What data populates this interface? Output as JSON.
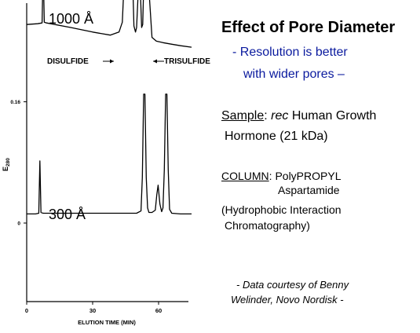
{
  "slide": {
    "title": "Effect of Pore Diameter",
    "bullet_line1": "- Resolution is better",
    "bullet_line2": "with wider pores –",
    "sample_label": "Sample",
    "sample_sep": ": ",
    "sample_italic": "rec",
    "sample_rest": " Human Growth",
    "sample_line2": "Hormone (21 kDa)",
    "column_label": "COLUMN",
    "column_rest": ": PolyPROPYL",
    "column_line2": "Aspartamide",
    "hic_line1": "(Hydrophobic Interaction",
    "hic_line2": "Chromatography)",
    "credit_line1": "- Data courtesy of Benny",
    "credit_line2": "Welinder, Novo Nordisk -",
    "colors": {
      "bullet_text": "#0a1a9e",
      "trace": "#000000"
    }
  },
  "chart_data": {
    "type": "line",
    "xlabel": "ELUTION TIME (MIN)",
    "ylabel": "E",
    "ylabel_subscript": "280",
    "x_ticks": [
      "0",
      "30",
      "60"
    ],
    "y_ticks": [
      "0.16",
      "0"
    ],
    "xlim": [
      0,
      75
    ],
    "series": [
      {
        "name": "1000 Å",
        "annotations": [
          "DISULFIDE",
          "TRISULFIDE"
        ],
        "x": [
          0,
          5,
          7,
          7.5,
          8,
          9,
          20,
          30,
          38,
          42,
          43.5,
          44.5,
          45.3,
          46.2,
          47.3,
          48.2,
          48.8,
          49.5,
          50,
          50.5,
          51.2,
          51.8,
          52.3,
          52.8,
          53.3,
          53.8,
          54.3,
          55,
          55.8,
          57,
          59,
          62,
          66,
          70,
          75
        ],
        "y": [
          0.262,
          0.263,
          0.264,
          0.34,
          0.265,
          0.264,
          0.258,
          0.252,
          0.248,
          0.252,
          0.265,
          0.33,
          0.48,
          0.52,
          0.47,
          0.32,
          0.26,
          0.252,
          0.258,
          0.29,
          0.34,
          0.3,
          0.258,
          0.262,
          0.32,
          0.48,
          0.52,
          0.45,
          0.3,
          0.245,
          0.24,
          0.238,
          0.236,
          0.234,
          0.232
        ]
      },
      {
        "name": "300 Å",
        "x": [
          0,
          4,
          5.5,
          6,
          6.5,
          7.5,
          20,
          30,
          45,
          50,
          52,
          52.6,
          53.2,
          53.8,
          54.4,
          55,
          55.6,
          57,
          58.5,
          59.2,
          59.8,
          60.6,
          61.4,
          62,
          62.6,
          63.2,
          63.8,
          64.4,
          65,
          66,
          70,
          75
        ],
        "y": [
          0.012,
          0.012,
          0.013,
          0.082,
          0.014,
          0.013,
          0.013,
          0.013,
          0.013,
          0.013,
          0.016,
          0.06,
          0.17,
          0.17,
          0.06,
          0.02,
          0.014,
          0.014,
          0.017,
          0.038,
          0.05,
          0.025,
          0.015,
          0.02,
          0.07,
          0.17,
          0.17,
          0.07,
          0.018,
          0.013,
          0.012,
          0.012
        ]
      }
    ]
  }
}
